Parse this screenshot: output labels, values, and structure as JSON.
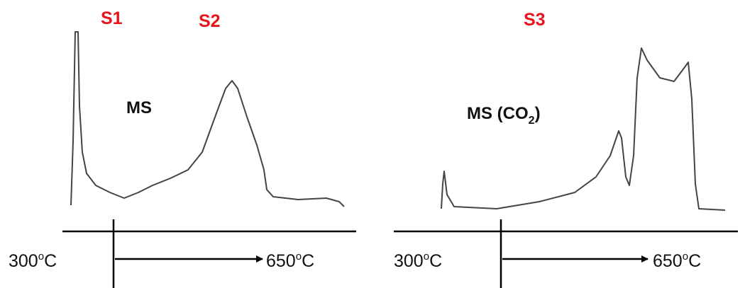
{
  "peaks": {
    "s1": "S1",
    "s2": "S2",
    "s3": "S3"
  },
  "panels": [
    {
      "signal": {
        "text": "MS"
      },
      "start": {
        "number": "300",
        "degree": "o",
        "unit": "C"
      },
      "end": {
        "number": "650",
        "degree": "o",
        "unit": "C"
      }
    },
    {
      "signal": {
        "text": "MS (CO",
        "sub": "2",
        "close": ")"
      },
      "start": {
        "number": "300",
        "degree": "o",
        "unit": "C"
      },
      "end": {
        "number": "650",
        "degree": "o",
        "unit": "C"
      }
    }
  ]
}
